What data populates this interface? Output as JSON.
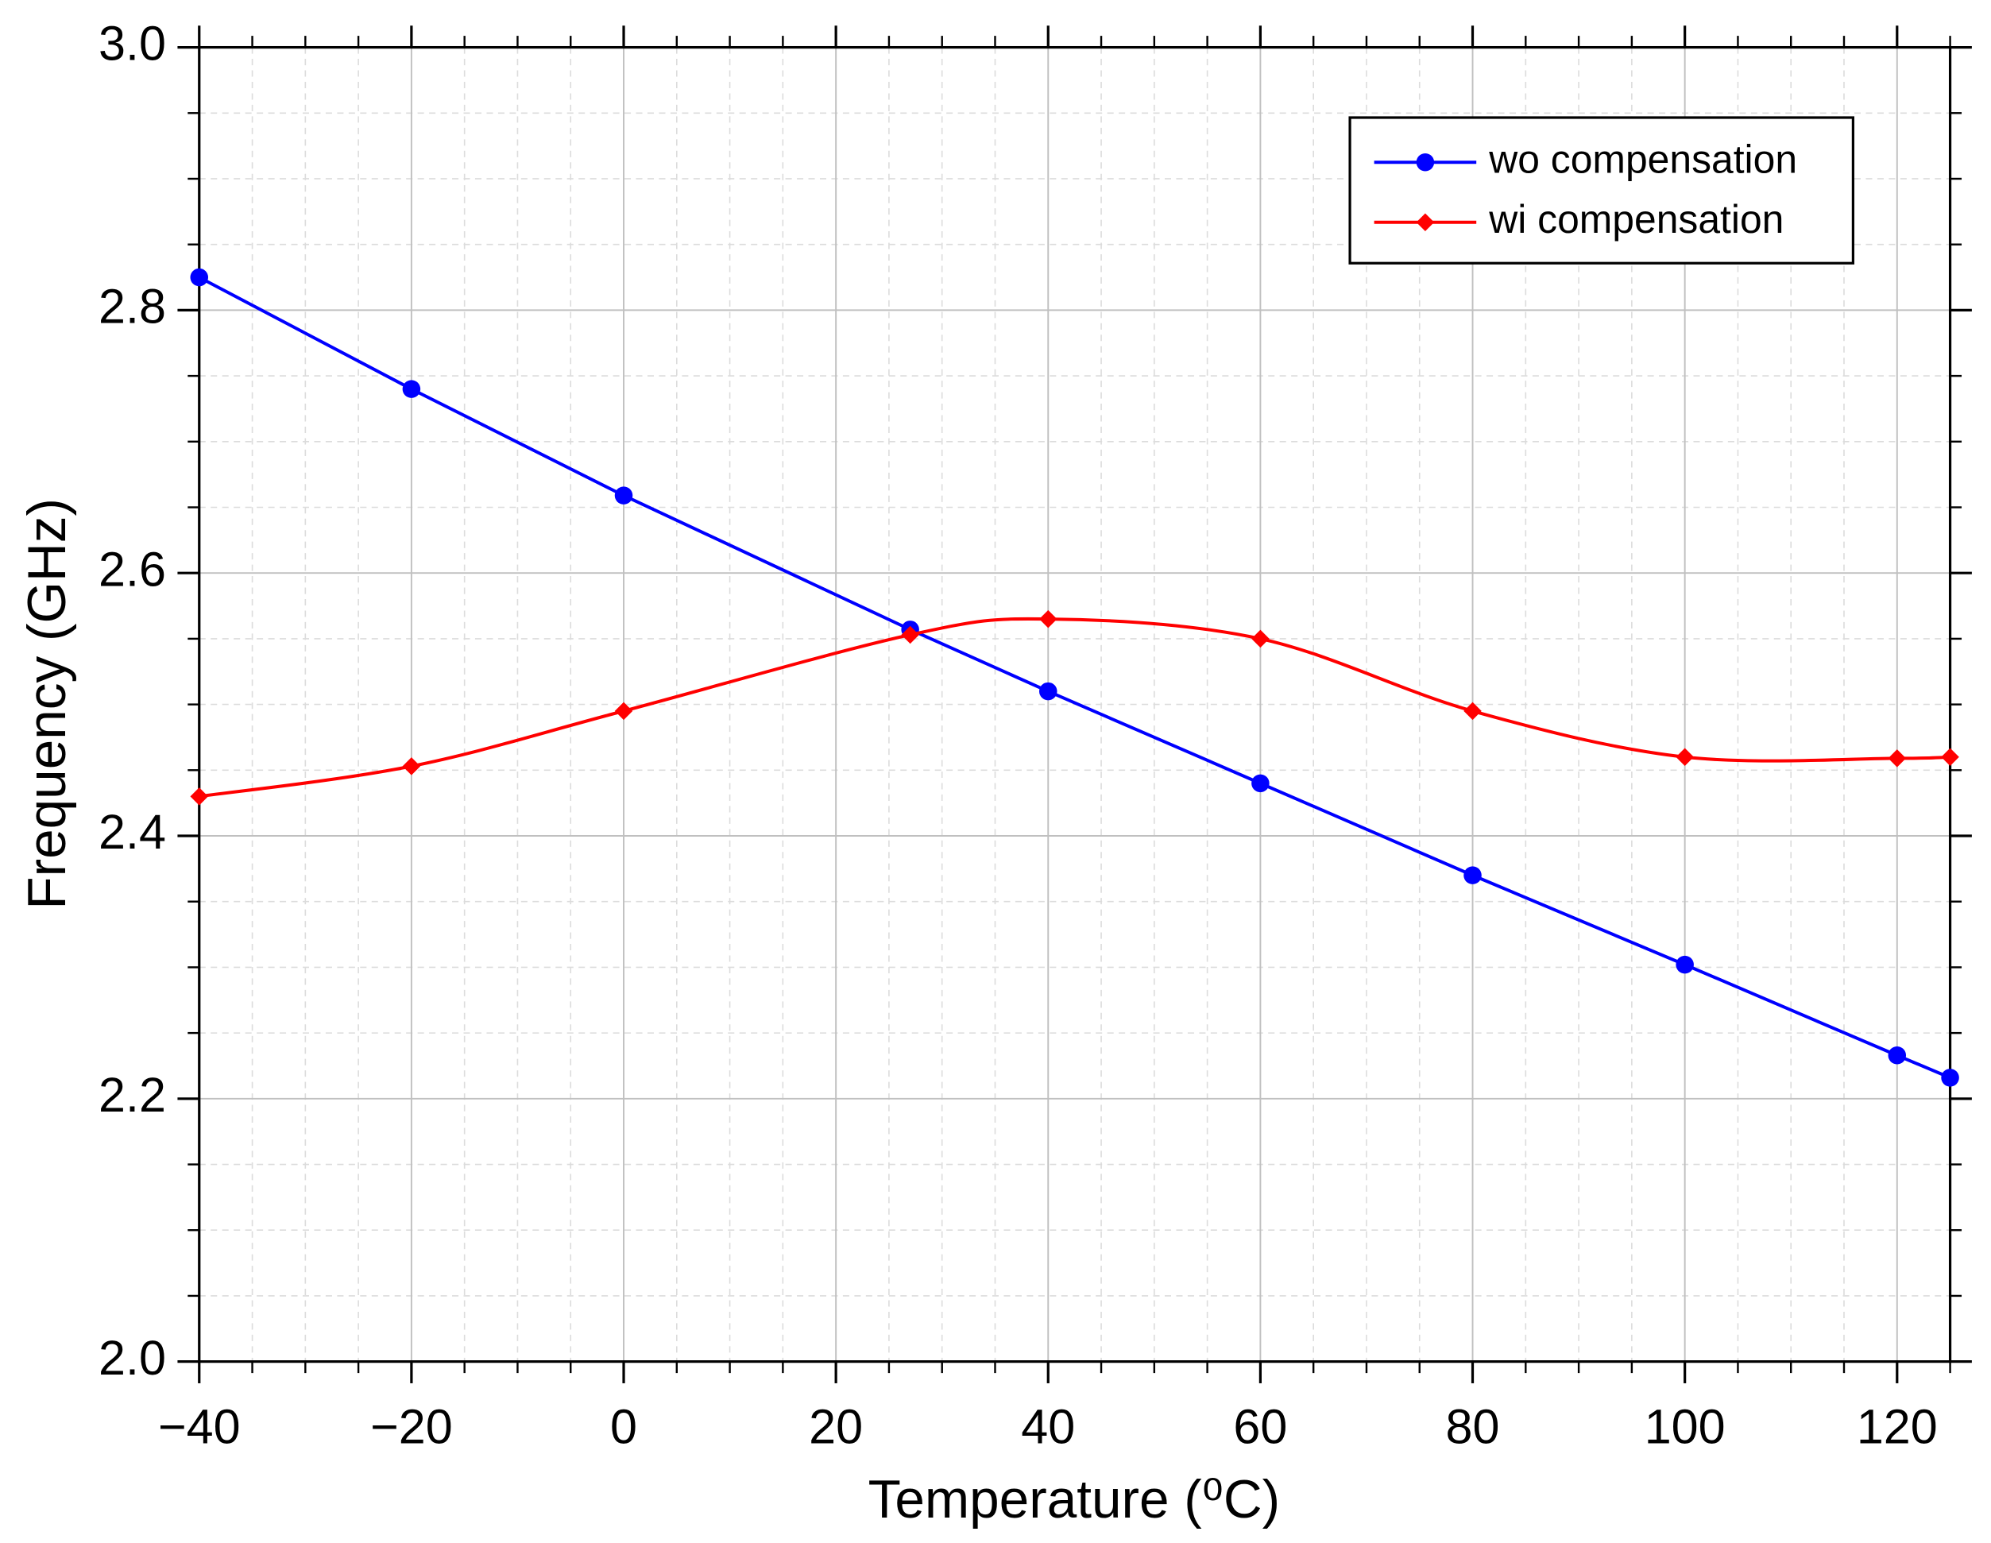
{
  "chart_data": {
    "type": "line",
    "x_label": "Temperature (⁰C)",
    "y_label": "Frequency (GHz)",
    "series": [
      {
        "name": "wo compensation",
        "color": "#0000ff",
        "marker": "circle",
        "x": [
          -40,
          -20,
          0,
          27,
          40,
          60,
          80,
          100,
          120,
          125
        ],
        "values": [
          2.825,
          2.74,
          2.659,
          2.557,
          2.51,
          2.44,
          2.37,
          2.302,
          2.233,
          2.216
        ]
      },
      {
        "name": "wi compensation",
        "color": "#ff0000",
        "marker": "diamond",
        "x": [
          -40,
          -20,
          0,
          27,
          40,
          60,
          80,
          100,
          120,
          125
        ],
        "values": [
          2.43,
          2.453,
          2.495,
          2.553,
          2.565,
          2.55,
          2.495,
          2.46,
          2.459,
          2.46
        ]
      }
    ],
    "xlim": [
      -40,
      125
    ],
    "xticks": [
      {
        "value": -40,
        "label": "−40"
      },
      {
        "value": -20,
        "label": "−20"
      },
      0,
      20,
      40,
      60,
      80,
      100,
      120
    ],
    "ylim": [
      2.0,
      3.0
    ],
    "yticks": [
      {
        "value": 2.0,
        "label": "2.0"
      },
      2.2,
      2.4,
      2.6,
      2.8,
      {
        "value": 3.0,
        "label": "3.0"
      }
    ],
    "grid": true,
    "legend": "upper right"
  }
}
